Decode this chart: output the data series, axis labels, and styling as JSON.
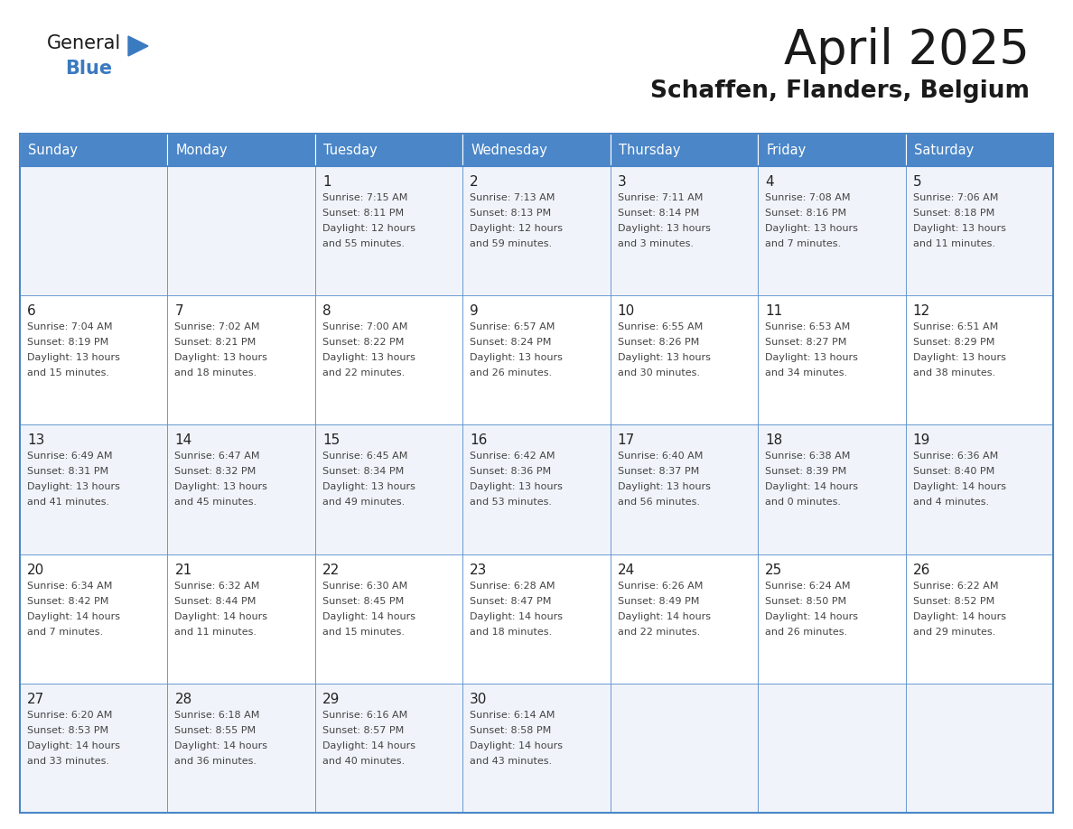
{
  "title": "April 2025",
  "subtitle": "Schaffen, Flanders, Belgium",
  "header_bg_color": "#4a86c8",
  "header_text_color": "#ffffff",
  "border_color": "#4a86c8",
  "cell_bg_even": "#f0f4fa",
  "cell_bg_odd": "#ffffff",
  "day_number_color": "#222222",
  "cell_text_color": "#444444",
  "days_of_week": [
    "Sunday",
    "Monday",
    "Tuesday",
    "Wednesday",
    "Thursday",
    "Friday",
    "Saturday"
  ],
  "weeks": [
    [
      {
        "day": "",
        "sunrise": "",
        "sunset": "",
        "daylight": ""
      },
      {
        "day": "",
        "sunrise": "",
        "sunset": "",
        "daylight": ""
      },
      {
        "day": "1",
        "sunrise": "7:15 AM",
        "sunset": "8:11 PM",
        "daylight": "12 hours and 55 minutes."
      },
      {
        "day": "2",
        "sunrise": "7:13 AM",
        "sunset": "8:13 PM",
        "daylight": "12 hours and 59 minutes."
      },
      {
        "day": "3",
        "sunrise": "7:11 AM",
        "sunset": "8:14 PM",
        "daylight": "13 hours and 3 minutes."
      },
      {
        "day": "4",
        "sunrise": "7:08 AM",
        "sunset": "8:16 PM",
        "daylight": "13 hours and 7 minutes."
      },
      {
        "day": "5",
        "sunrise": "7:06 AM",
        "sunset": "8:18 PM",
        "daylight": "13 hours and 11 minutes."
      }
    ],
    [
      {
        "day": "6",
        "sunrise": "7:04 AM",
        "sunset": "8:19 PM",
        "daylight": "13 hours and 15 minutes."
      },
      {
        "day": "7",
        "sunrise": "7:02 AM",
        "sunset": "8:21 PM",
        "daylight": "13 hours and 18 minutes."
      },
      {
        "day": "8",
        "sunrise": "7:00 AM",
        "sunset": "8:22 PM",
        "daylight": "13 hours and 22 minutes."
      },
      {
        "day": "9",
        "sunrise": "6:57 AM",
        "sunset": "8:24 PM",
        "daylight": "13 hours and 26 minutes."
      },
      {
        "day": "10",
        "sunrise": "6:55 AM",
        "sunset": "8:26 PM",
        "daylight": "13 hours and 30 minutes."
      },
      {
        "day": "11",
        "sunrise": "6:53 AM",
        "sunset": "8:27 PM",
        "daylight": "13 hours and 34 minutes."
      },
      {
        "day": "12",
        "sunrise": "6:51 AM",
        "sunset": "8:29 PM",
        "daylight": "13 hours and 38 minutes."
      }
    ],
    [
      {
        "day": "13",
        "sunrise": "6:49 AM",
        "sunset": "8:31 PM",
        "daylight": "13 hours and 41 minutes."
      },
      {
        "day": "14",
        "sunrise": "6:47 AM",
        "sunset": "8:32 PM",
        "daylight": "13 hours and 45 minutes."
      },
      {
        "day": "15",
        "sunrise": "6:45 AM",
        "sunset": "8:34 PM",
        "daylight": "13 hours and 49 minutes."
      },
      {
        "day": "16",
        "sunrise": "6:42 AM",
        "sunset": "8:36 PM",
        "daylight": "13 hours and 53 minutes."
      },
      {
        "day": "17",
        "sunrise": "6:40 AM",
        "sunset": "8:37 PM",
        "daylight": "13 hours and 56 minutes."
      },
      {
        "day": "18",
        "sunrise": "6:38 AM",
        "sunset": "8:39 PM",
        "daylight": "14 hours and 0 minutes."
      },
      {
        "day": "19",
        "sunrise": "6:36 AM",
        "sunset": "8:40 PM",
        "daylight": "14 hours and 4 minutes."
      }
    ],
    [
      {
        "day": "20",
        "sunrise": "6:34 AM",
        "sunset": "8:42 PM",
        "daylight": "14 hours and 7 minutes."
      },
      {
        "day": "21",
        "sunrise": "6:32 AM",
        "sunset": "8:44 PM",
        "daylight": "14 hours and 11 minutes."
      },
      {
        "day": "22",
        "sunrise": "6:30 AM",
        "sunset": "8:45 PM",
        "daylight": "14 hours and 15 minutes."
      },
      {
        "day": "23",
        "sunrise": "6:28 AM",
        "sunset": "8:47 PM",
        "daylight": "14 hours and 18 minutes."
      },
      {
        "day": "24",
        "sunrise": "6:26 AM",
        "sunset": "8:49 PM",
        "daylight": "14 hours and 22 minutes."
      },
      {
        "day": "25",
        "sunrise": "6:24 AM",
        "sunset": "8:50 PM",
        "daylight": "14 hours and 26 minutes."
      },
      {
        "day": "26",
        "sunrise": "6:22 AM",
        "sunset": "8:52 PM",
        "daylight": "14 hours and 29 minutes."
      }
    ],
    [
      {
        "day": "27",
        "sunrise": "6:20 AM",
        "sunset": "8:53 PM",
        "daylight": "14 hours and 33 minutes."
      },
      {
        "day": "28",
        "sunrise": "6:18 AM",
        "sunset": "8:55 PM",
        "daylight": "14 hours and 36 minutes."
      },
      {
        "day": "29",
        "sunrise": "6:16 AM",
        "sunset": "8:57 PM",
        "daylight": "14 hours and 40 minutes."
      },
      {
        "day": "30",
        "sunrise": "6:14 AM",
        "sunset": "8:58 PM",
        "daylight": "14 hours and 43 minutes."
      },
      {
        "day": "",
        "sunrise": "",
        "sunset": "",
        "daylight": ""
      },
      {
        "day": "",
        "sunrise": "",
        "sunset": "",
        "daylight": ""
      },
      {
        "day": "",
        "sunrise": "",
        "sunset": "",
        "daylight": ""
      }
    ]
  ],
  "logo_color_general": "#1a1a1a",
  "logo_color_blue": "#3a7abf",
  "logo_triangle_color": "#3a7abf"
}
